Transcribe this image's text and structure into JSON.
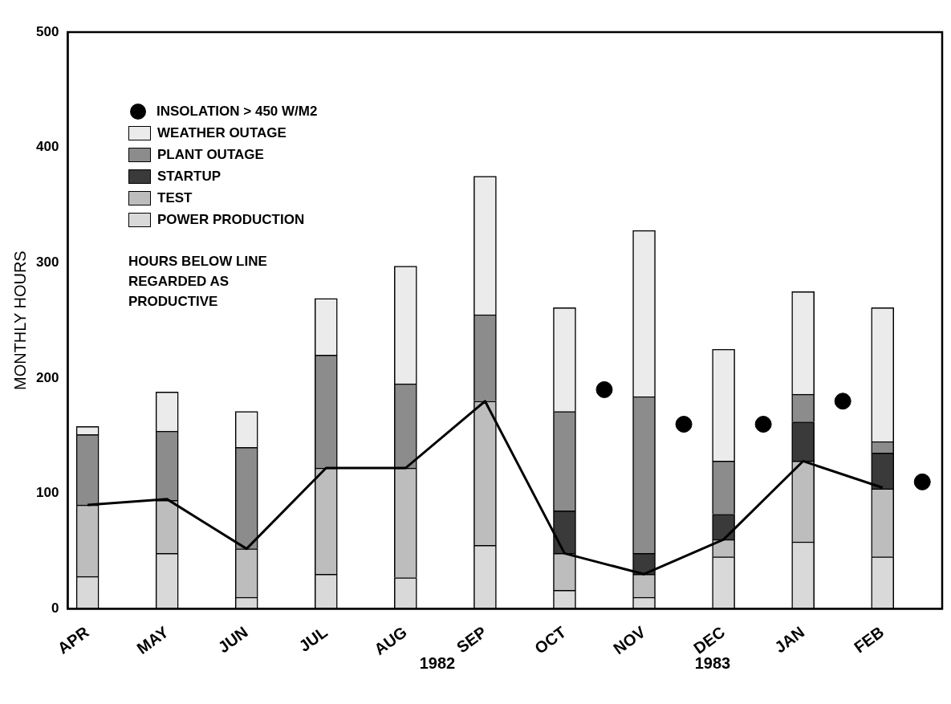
{
  "chart_data": {
    "type": "bar",
    "stacked": true,
    "ylabel": "MONTHLY HOURS",
    "categories": [
      "APR",
      null,
      "MAY",
      null,
      "JUN",
      null,
      "JUL",
      null,
      "AUG",
      null,
      "SEP",
      null,
      "OCT",
      null,
      "NOV",
      null,
      "DEC",
      null,
      "JAN",
      null,
      "FEB",
      null
    ],
    "series": [
      {
        "name": "POWER PRODUCTION",
        "color": "#d9d9d9",
        "values": [
          28,
          null,
          48,
          null,
          10,
          null,
          30,
          null,
          27,
          null,
          55,
          null,
          16,
          null,
          10,
          null,
          45,
          null,
          58,
          null,
          45,
          null
        ]
      },
      {
        "name": "TEST",
        "color": "#bdbdbd",
        "values": [
          62,
          null,
          46,
          null,
          42,
          null,
          92,
          null,
          95,
          null,
          125,
          null,
          32,
          null,
          20,
          null,
          15,
          null,
          70,
          null,
          59,
          null
        ]
      },
      {
        "name": "STARTUP",
        "color": "#3a3a3a",
        "values": [
          0,
          null,
          0,
          null,
          0,
          null,
          0,
          null,
          0,
          null,
          0,
          null,
          37,
          null,
          18,
          null,
          22,
          null,
          34,
          null,
          31,
          null
        ]
      },
      {
        "name": "PLANT OUTAGE",
        "color": "#8c8c8c",
        "values": [
          61,
          null,
          60,
          null,
          88,
          null,
          98,
          null,
          73,
          null,
          75,
          null,
          86,
          null,
          136,
          null,
          46,
          null,
          24,
          null,
          10,
          null
        ]
      },
      {
        "name": "WEATHER OUTAGE",
        "color": "#ebebeb",
        "values": [
          7,
          null,
          34,
          null,
          31,
          null,
          49,
          null,
          102,
          null,
          120,
          null,
          90,
          null,
          144,
          null,
          97,
          null,
          89,
          null,
          116,
          null
        ]
      },
      {
        "type": "line",
        "color": "#000000",
        "x": [
          "APR",
          "MAY",
          "JUN",
          "JUL",
          "AUG",
          "SEP",
          "OCT",
          "NOV",
          "DEC",
          "JAN",
          "FEB"
        ],
        "values": [
          90,
          95,
          52,
          122,
          122,
          180,
          48,
          30,
          60,
          128,
          105
        ]
      },
      {
        "type": "scatter",
        "name": "INSOLATION > 450 W/M2",
        "color": "#000000",
        "marker": "circle",
        "values": [
          null,
          null,
          null,
          null,
          null,
          null,
          null,
          null,
          null,
          null,
          null,
          null,
          null,
          190,
          null,
          160,
          null,
          160,
          null,
          180,
          null,
          110
        ]
      }
    ],
    "ylim": [
      0,
      500
    ],
    "yticks": [
      0,
      100,
      200,
      300,
      400,
      500
    ],
    "grid": false,
    "legend": "top left",
    "annotations": [
      "HOURS BELOW LINE REGARDED AS PRODUCTIVE",
      "1982",
      "1983"
    ]
  }
}
